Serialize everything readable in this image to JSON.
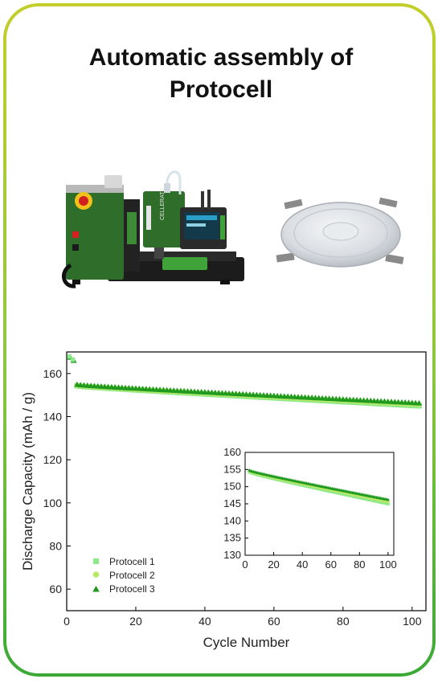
{
  "header": {
    "title_line1": "Automatic assembly of",
    "title_line2": "Protocell"
  },
  "machine": {
    "brand_label": "CELLERATE"
  },
  "colors": {
    "border_top": "#c3cf2a",
    "border_bottom": "#3aa935",
    "machine_green": "#2f6e2a",
    "series_1": "#8ee98a",
    "series_2": "#b6e86a",
    "series_3": "#1f9a1f"
  },
  "chart_data": [
    {
      "type": "scatter",
      "title": "",
      "xlabel": "Cycle Number",
      "ylabel": "Discharge Capacity (mAh / g)",
      "xlim": [
        0,
        104
      ],
      "ylim": [
        50,
        170
      ],
      "x_ticks": [
        0,
        20,
        40,
        60,
        80,
        100
      ],
      "y_ticks": [
        60,
        80,
        100,
        120,
        140,
        160
      ],
      "legend": "bottom-left",
      "series": [
        {
          "name": "Protocell 1",
          "marker": "square",
          "color": "#8ee98a",
          "start": 154.3,
          "end": 145.0
        },
        {
          "name": "Protocell 2",
          "marker": "circle",
          "color": "#b6e86a",
          "start": 154.5,
          "end": 145.6
        },
        {
          "name": "Protocell 3",
          "marker": "triangle",
          "color": "#1f9a1f",
          "start": 154.8,
          "end": 146.2
        }
      ],
      "formation_points": [
        {
          "x": 1,
          "y": 167.5
        },
        {
          "x": 2,
          "y": 166.0
        }
      ],
      "cycles": [
        3,
        102
      ]
    },
    {
      "type": "scatter",
      "title": "",
      "xlabel": "",
      "ylabel": "",
      "xlim": [
        0,
        104
      ],
      "ylim": [
        130,
        160
      ],
      "x_ticks": [
        0,
        20,
        40,
        60,
        80,
        100
      ],
      "y_ticks": [
        130,
        135,
        140,
        145,
        150,
        155,
        160
      ],
      "cycles": [
        3,
        100
      ]
    }
  ]
}
